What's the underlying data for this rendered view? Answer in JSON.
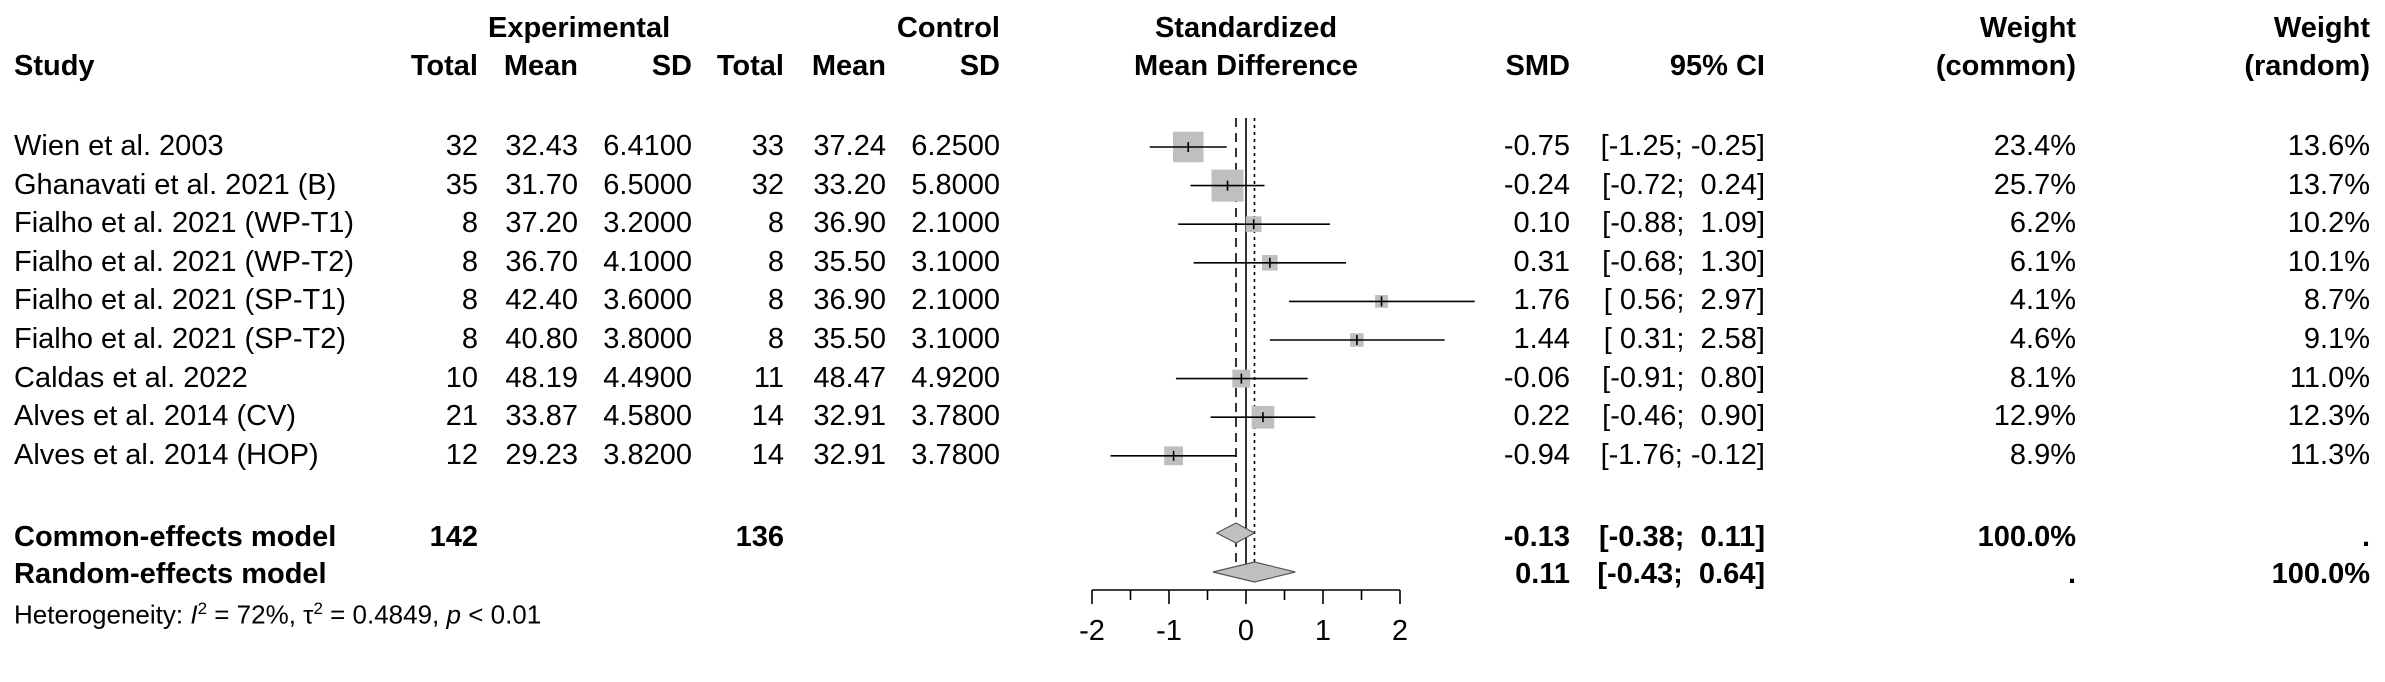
{
  "headers": {
    "experimental": "Experimental",
    "control": "Control",
    "study": "Study",
    "total_e": "Total",
    "mean_e": "Mean",
    "sd_e": "SD",
    "total_c": "Total",
    "mean_c": "Mean",
    "sd_c": "SD",
    "plot_title_1": "Standardized",
    "plot_title_2": "Mean Difference",
    "smd": "SMD",
    "ci": "95% CI",
    "weight_common_1": "Weight",
    "weight_common_2": "(common)",
    "weight_random_1": "Weight",
    "weight_random_2": "(random)"
  },
  "studies": [
    {
      "study": "Wien et al. 2003",
      "total_e": "32",
      "mean_e": "32.43",
      "sd_e": "6.4100",
      "total_c": "33",
      "mean_c": "37.24",
      "sd_c": "6.2500",
      "smd": "-0.75",
      "ci": "[-1.25; -0.25]",
      "w_common": "23.4%",
      "w_random": "13.6%"
    },
    {
      "study": "Ghanavati et al. 2021 (B)",
      "total_e": "35",
      "mean_e": "31.70",
      "sd_e": "6.5000",
      "total_c": "32",
      "mean_c": "33.20",
      "sd_c": "5.8000",
      "smd": "-0.24",
      "ci": "[-0.72;  0.24]",
      "w_common": "25.7%",
      "w_random": "13.7%"
    },
    {
      "study": "Fialho et al. 2021 (WP-T1)",
      "total_e": "8",
      "mean_e": "37.20",
      "sd_e": "3.2000",
      "total_c": "8",
      "mean_c": "36.90",
      "sd_c": "2.1000",
      "smd": "0.10",
      "ci": "[-0.88;  1.09]",
      "w_common": "6.2%",
      "w_random": "10.2%"
    },
    {
      "study": "Fialho et al. 2021 (WP-T2)",
      "total_e": "8",
      "mean_e": "36.70",
      "sd_e": "4.1000",
      "total_c": "8",
      "mean_c": "35.50",
      "sd_c": "3.1000",
      "smd": "0.31",
      "ci": "[-0.68;  1.30]",
      "w_common": "6.1%",
      "w_random": "10.1%"
    },
    {
      "study": "Fialho et al. 2021 (SP-T1)",
      "total_e": "8",
      "mean_e": "42.40",
      "sd_e": "3.6000",
      "total_c": "8",
      "mean_c": "36.90",
      "sd_c": "2.1000",
      "smd": "1.76",
      "ci": "[ 0.56;  2.97]",
      "w_common": "4.1%",
      "w_random": "8.7%"
    },
    {
      "study": "Fialho et al. 2021 (SP-T2)",
      "total_e": "8",
      "mean_e": "40.80",
      "sd_e": "3.8000",
      "total_c": "8",
      "mean_c": "35.50",
      "sd_c": "3.1000",
      "smd": "1.44",
      "ci": "[ 0.31;  2.58]",
      "w_common": "4.6%",
      "w_random": "9.1%"
    },
    {
      "study": "Caldas et al. 2022",
      "total_e": "10",
      "mean_e": "48.19",
      "sd_e": "4.4900",
      "total_c": "11",
      "mean_c": "48.47",
      "sd_c": "4.9200",
      "smd": "-0.06",
      "ci": "[-0.91;  0.80]",
      "w_common": "8.1%",
      "w_random": "11.0%"
    },
    {
      "study": "Alves et al. 2014 (CV)",
      "total_e": "21",
      "mean_e": "33.87",
      "sd_e": "4.5800",
      "total_c": "14",
      "mean_c": "32.91",
      "sd_c": "3.7800",
      "smd": "0.22",
      "ci": "[-0.46;  0.90]",
      "w_common": "12.9%",
      "w_random": "12.3%"
    },
    {
      "study": "Alves et al. 2014 (HOP)",
      "total_e": "12",
      "mean_e": "29.23",
      "sd_e": "3.8200",
      "total_c": "14",
      "mean_c": "32.91",
      "sd_c": "3.7800",
      "smd": "-0.94",
      "ci": "[-1.76; -0.12]",
      "w_common": "8.9%",
      "w_random": "11.3%"
    }
  ],
  "summary": {
    "common": {
      "label": "Common-effects model",
      "total_e": "142",
      "total_c": "136",
      "smd": "-0.13",
      "ci": "[-0.38;  0.11]",
      "w_common": "100.0%",
      "w_random": "."
    },
    "random": {
      "label": "Random-effects model",
      "smd": "0.11",
      "ci": "[-0.43;  0.64]",
      "w_common": ".",
      "w_random": "100.0%"
    }
  },
  "heterogeneity": {
    "prefix": "Heterogeneity: ",
    "i2_symbol": "I",
    "i2_value": " = 72%, ",
    "tau_symbol": "τ",
    "tau_value": " = 0.4849, ",
    "p_symbol": "p",
    "p_value": " < 0.01"
  },
  "chart_data": {
    "type": "forest",
    "title": "Standardized Mean Difference",
    "xlim": [
      -2,
      2
    ],
    "ticks": [
      -2,
      -1,
      0,
      1,
      2
    ],
    "tick_labels": [
      "-2",
      "-1",
      "0",
      "1",
      "2"
    ],
    "null_line": 0,
    "common_estimate": -0.13,
    "random_estimate": 0.11,
    "points": [
      {
        "smd": -0.75,
        "lo": -1.25,
        "hi": -0.25,
        "w": 23.4
      },
      {
        "smd": -0.24,
        "lo": -0.72,
        "hi": 0.24,
        "w": 25.7
      },
      {
        "smd": 0.1,
        "lo": -0.88,
        "hi": 1.09,
        "w": 6.2
      },
      {
        "smd": 0.31,
        "lo": -0.68,
        "hi": 1.3,
        "w": 6.1
      },
      {
        "smd": 1.76,
        "lo": 0.56,
        "hi": 2.97,
        "w": 4.1
      },
      {
        "smd": 1.44,
        "lo": 0.31,
        "hi": 2.58,
        "w": 4.6
      },
      {
        "smd": -0.06,
        "lo": -0.91,
        "hi": 0.8,
        "w": 8.1
      },
      {
        "smd": 0.22,
        "lo": -0.46,
        "hi": 0.9,
        "w": 12.9
      },
      {
        "smd": -0.94,
        "lo": -1.76,
        "hi": -0.12,
        "w": 8.9
      }
    ],
    "common_diamond": {
      "est": -0.13,
      "lo": -0.38,
      "hi": 0.11
    },
    "random_diamond": {
      "est": 0.11,
      "lo": -0.43,
      "hi": 0.64
    },
    "colors": {
      "square": "#bfbfbf",
      "diamond": "#c0c0c0",
      "line": "#000000"
    }
  }
}
